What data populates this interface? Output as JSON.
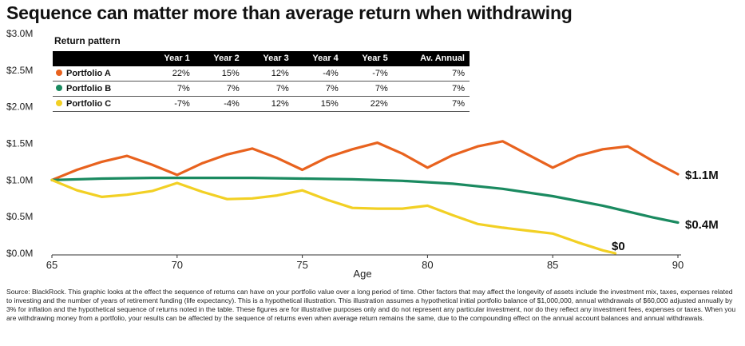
{
  "title": "Sequence can matter more than average return when withdrawing",
  "table": {
    "caption": "Return pattern",
    "headers": [
      "",
      "Year 1",
      "Year 2",
      "Year 3",
      "Year 4",
      "Year 5",
      "Av. Annual"
    ],
    "rows": [
      {
        "name": "Portfolio A",
        "color": "#E8621E",
        "cells": [
          "22%",
          "15%",
          "12%",
          "-4%",
          "-7%",
          "7%"
        ]
      },
      {
        "name": "Portfolio B",
        "color": "#1A8A60",
        "cells": [
          "7%",
          "7%",
          "7%",
          "7%",
          "7%",
          "7%"
        ]
      },
      {
        "name": "Portfolio C",
        "color": "#F2D024",
        "cells": [
          "-7%",
          "-4%",
          "12%",
          "15%",
          "22%",
          "7%"
        ]
      }
    ]
  },
  "chart_data": {
    "type": "line",
    "xlabel": "Age",
    "ylabel": "",
    "xlim": [
      65,
      90
    ],
    "ylim": [
      0,
      3.0
    ],
    "x_ticks": [
      "65",
      "70",
      "75",
      "80",
      "85",
      "90"
    ],
    "y_ticks": [
      "$0.0M",
      "$0.5M",
      "$1.0M",
      "$1.5M",
      "$2.0M",
      "$2.5M",
      "$3.0M"
    ],
    "series": [
      {
        "name": "Portfolio A",
        "color": "#E8621E",
        "end_label": "$1.1M",
        "x": [
          65,
          66,
          67,
          68,
          69,
          70,
          71,
          72,
          73,
          74,
          75,
          76,
          77,
          78,
          79,
          80,
          81,
          82,
          83,
          84,
          85,
          86,
          87,
          88,
          89,
          90
        ],
        "y": [
          1.0,
          1.14,
          1.25,
          1.33,
          1.21,
          1.07,
          1.23,
          1.35,
          1.43,
          1.3,
          1.14,
          1.31,
          1.42,
          1.51,
          1.36,
          1.17,
          1.34,
          1.46,
          1.53,
          1.35,
          1.17,
          1.33,
          1.42,
          1.46,
          1.26,
          1.08
        ]
      },
      {
        "name": "Portfolio B",
        "color": "#1A8A60",
        "end_label": "$0.4M",
        "x": [
          65,
          67,
          69,
          71,
          73,
          75,
          77,
          79,
          81,
          83,
          85,
          87,
          89,
          90
        ],
        "y": [
          1.0,
          1.02,
          1.03,
          1.03,
          1.03,
          1.02,
          1.01,
          0.99,
          0.95,
          0.88,
          0.78,
          0.65,
          0.49,
          0.42
        ]
      },
      {
        "name": "Portfolio C",
        "color": "#F2D024",
        "end_label": "$0",
        "x": [
          65,
          66,
          67,
          68,
          69,
          70,
          71,
          72,
          73,
          74,
          75,
          76,
          77,
          78,
          79,
          80,
          81,
          82,
          83,
          84,
          85,
          86,
          87,
          87.5
        ],
        "y": [
          1.0,
          0.86,
          0.77,
          0.8,
          0.85,
          0.96,
          0.84,
          0.74,
          0.75,
          0.79,
          0.86,
          0.73,
          0.62,
          0.61,
          0.61,
          0.65,
          0.52,
          0.4,
          0.35,
          0.31,
          0.27,
          0.15,
          0.04,
          0.0
        ]
      }
    ]
  },
  "source": "Source: BlackRock. This graphic looks at the effect the sequence of returns can have on your portfolio value over a long period of time. Other factors that may affect the longevity of assets include the investment mix, taxes, expenses related to investing and the number of years of retirement funding (life expectancy). This is a hypothetical illustration. This illustration assumes a hypothetical initial portfolio balance of $1,000,000, annual withdrawals of $60,000 adjusted annually by 3% for inflation and the hypothetical sequence of returns noted in the table. These figures are for illustrative purposes only and do not represent any particular investment, nor do they reflect any investment fees, expenses or taxes. When you are withdrawing money from a portfolio, your results can be affected by the sequence of returns even when average return remains the same, due to the compounding effect on the annual account balances and annual withdrawals."
}
